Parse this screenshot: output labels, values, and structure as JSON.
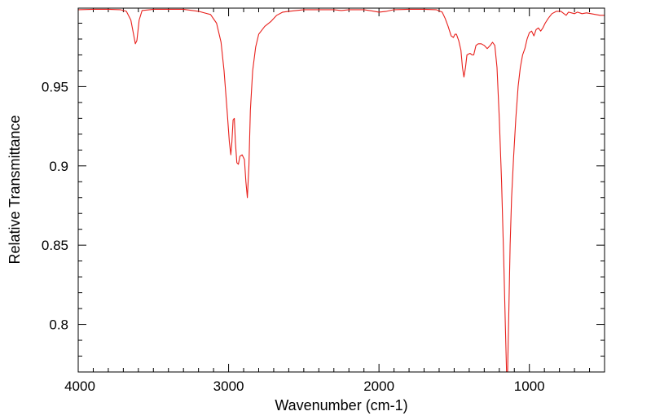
{
  "chart_data": {
    "type": "line",
    "title": "",
    "xlabel": "Wavenumber (cm-1)",
    "ylabel": "Relative Transmittance",
    "xlim": [
      4000,
      500
    ],
    "ylim": [
      0.77,
      0.9995
    ],
    "x_reversed": true,
    "x_ticks": [
      4000,
      3000,
      2000,
      1000
    ],
    "x_tick_labels": [
      "4000",
      "3000",
      "2000",
      "1000"
    ],
    "y_ticks": [
      0.8,
      0.85,
      0.9,
      0.95
    ],
    "y_tick_labels": [
      "0.8",
      "0.85",
      "0.9",
      "0.95"
    ],
    "grid": false,
    "legend": "none",
    "series": [
      {
        "color": "#e8201c",
        "points": [
          [
            4000,
            0.9985
          ],
          [
            3900,
            0.9988
          ],
          [
            3800,
            0.9988
          ],
          [
            3720,
            0.9985
          ],
          [
            3680,
            0.9975
          ],
          [
            3650,
            0.992
          ],
          [
            3630,
            0.982
          ],
          [
            3620,
            0.977
          ],
          [
            3610,
            0.979
          ],
          [
            3595,
            0.992
          ],
          [
            3575,
            0.998
          ],
          [
            3500,
            0.9988
          ],
          [
            3300,
            0.9988
          ],
          [
            3200,
            0.9975
          ],
          [
            3120,
            0.9955
          ],
          [
            3080,
            0.99
          ],
          [
            3050,
            0.978
          ],
          [
            3030,
            0.96
          ],
          [
            3010,
            0.935
          ],
          [
            2995,
            0.915
          ],
          [
            2985,
            0.907
          ],
          [
            2978,
            0.915
          ],
          [
            2970,
            0.929
          ],
          [
            2962,
            0.93
          ],
          [
            2955,
            0.915
          ],
          [
            2945,
            0.902
          ],
          [
            2935,
            0.901
          ],
          [
            2925,
            0.906
          ],
          [
            2910,
            0.907
          ],
          [
            2895,
            0.904
          ],
          [
            2885,
            0.89
          ],
          [
            2875,
            0.88
          ],
          [
            2865,
            0.9
          ],
          [
            2855,
            0.935
          ],
          [
            2840,
            0.96
          ],
          [
            2820,
            0.975
          ],
          [
            2800,
            0.983
          ],
          [
            2760,
            0.988
          ],
          [
            2720,
            0.991
          ],
          [
            2680,
            0.995
          ],
          [
            2640,
            0.997
          ],
          [
            2600,
            0.9975
          ],
          [
            2500,
            0.9985
          ],
          [
            2300,
            0.9985
          ],
          [
            2250,
            0.998
          ],
          [
            2200,
            0.9985
          ],
          [
            2100,
            0.9985
          ],
          [
            2050,
            0.9978
          ],
          [
            2000,
            0.997
          ],
          [
            1950,
            0.9975
          ],
          [
            1900,
            0.9985
          ],
          [
            1800,
            0.9988
          ],
          [
            1700,
            0.9988
          ],
          [
            1620,
            0.9985
          ],
          [
            1580,
            0.997
          ],
          [
            1560,
            0.993
          ],
          [
            1540,
            0.988
          ],
          [
            1520,
            0.982
          ],
          [
            1505,
            0.981
          ],
          [
            1495,
            0.983
          ],
          [
            1485,
            0.983
          ],
          [
            1470,
            0.979
          ],
          [
            1455,
            0.973
          ],
          [
            1445,
            0.962
          ],
          [
            1435,
            0.956
          ],
          [
            1425,
            0.962
          ],
          [
            1415,
            0.97
          ],
          [
            1395,
            0.971
          ],
          [
            1380,
            0.97
          ],
          [
            1370,
            0.97
          ],
          [
            1355,
            0.976
          ],
          [
            1340,
            0.977
          ],
          [
            1320,
            0.977
          ],
          [
            1300,
            0.976
          ],
          [
            1280,
            0.974
          ],
          [
            1260,
            0.976
          ],
          [
            1245,
            0.978
          ],
          [
            1230,
            0.976
          ],
          [
            1215,
            0.962
          ],
          [
            1200,
            0.93
          ],
          [
            1185,
            0.89
          ],
          [
            1170,
            0.84
          ],
          [
            1160,
            0.8
          ],
          [
            1152,
            0.77
          ],
          [
            1145,
            0.77
          ],
          [
            1138,
            0.8
          ],
          [
            1128,
            0.85
          ],
          [
            1118,
            0.88
          ],
          [
            1105,
            0.905
          ],
          [
            1090,
            0.93
          ],
          [
            1075,
            0.95
          ],
          [
            1060,
            0.962
          ],
          [
            1045,
            0.97
          ],
          [
            1030,
            0.974
          ],
          [
            1015,
            0.98
          ],
          [
            1000,
            0.984
          ],
          [
            985,
            0.985
          ],
          [
            970,
            0.982
          ],
          [
            955,
            0.986
          ],
          [
            940,
            0.987
          ],
          [
            925,
            0.985
          ],
          [
            910,
            0.987
          ],
          [
            895,
            0.99
          ],
          [
            875,
            0.993
          ],
          [
            850,
            0.996
          ],
          [
            820,
            0.9975
          ],
          [
            790,
            0.9975
          ],
          [
            770,
            0.996
          ],
          [
            755,
            0.995
          ],
          [
            740,
            0.997
          ],
          [
            720,
            0.9965
          ],
          [
            700,
            0.996
          ],
          [
            680,
            0.997
          ],
          [
            650,
            0.996
          ],
          [
            620,
            0.9965
          ],
          [
            590,
            0.996
          ],
          [
            560,
            0.9955
          ],
          [
            530,
            0.995
          ],
          [
            500,
            0.995
          ]
        ]
      }
    ]
  }
}
